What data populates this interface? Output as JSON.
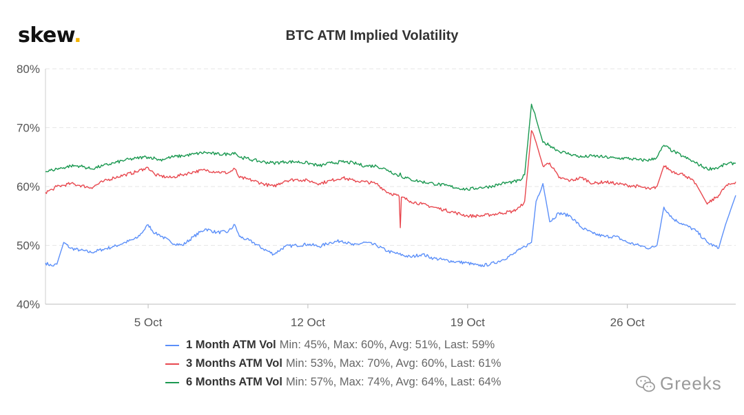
{
  "brand": {
    "name": "skew",
    "dot": "."
  },
  "watermark": {
    "text": "Greeks"
  },
  "chart_data": {
    "type": "line",
    "title": "BTC ATM Implied Volatility",
    "ylim": [
      40,
      80
    ],
    "yticks": [
      "40%",
      "50%",
      "60%",
      "70%",
      "80%"
    ],
    "ytick_values": [
      40,
      50,
      60,
      70,
      80
    ],
    "xlim": [
      0.5,
      30.75
    ],
    "xticks": [
      {
        "label": "5 Oct",
        "day": 5
      },
      {
        "label": "12 Oct",
        "day": 12
      },
      {
        "label": "19 Oct",
        "day": 19
      },
      {
        "label": "26 Oct",
        "day": 26
      }
    ],
    "grid": "horizontal-dashed",
    "legend_position": "bottom",
    "series": [
      {
        "name": "1 Month ATM Vol",
        "stats": "Min: 45%, Max: 60%, Avg: 51%, Last: 59%",
        "color": "#5b8ff9",
        "x": [
          0.5,
          0.8,
          1.0,
          1.3,
          1.6,
          2.0,
          2.5,
          3.0,
          3.5,
          4.0,
          4.5,
          4.8,
          5.0,
          5.3,
          5.5,
          6.0,
          6.5,
          7.0,
          7.5,
          8.0,
          8.5,
          8.8,
          9.0,
          9.3,
          9.6,
          10.0,
          10.5,
          11.0,
          11.5,
          12.0,
          12.5,
          13.0,
          13.5,
          14.0,
          14.5,
          15.0,
          15.5,
          16.0,
          16.5,
          17.0,
          17.5,
          18.0,
          18.5,
          19.0,
          19.5,
          20.0,
          20.5,
          21.0,
          21.3,
          21.5,
          21.8,
          22.0,
          22.3,
          22.6,
          23.0,
          23.5,
          24.0,
          24.5,
          25.0,
          25.5,
          26.0,
          26.5,
          27.0,
          27.3,
          27.6,
          28.0,
          28.5,
          29.0,
          29.5,
          30.0,
          30.3,
          30.75
        ],
        "values": [
          47,
          46.5,
          46.8,
          50.5,
          49.5,
          49.2,
          48.8,
          49.3,
          49.8,
          50.5,
          51.2,
          52.5,
          53.5,
          52,
          51.8,
          50.5,
          50,
          51.5,
          52.8,
          52.2,
          52.3,
          53.5,
          51.5,
          51,
          50.5,
          49.5,
          48.5,
          49.8,
          50,
          50.2,
          49.8,
          50.5,
          50.8,
          50,
          50.5,
          50,
          49,
          48.5,
          48,
          48.5,
          47.8,
          47.5,
          47.2,
          47,
          46.5,
          46.8,
          47.5,
          48.5,
          49.3,
          49.8,
          50.5,
          57.5,
          60.5,
          54,
          55.5,
          55,
          53,
          52,
          51.5,
          51.5,
          50.5,
          50,
          49.5,
          50,
          56.5,
          54.5,
          53.5,
          52.5,
          50.5,
          49.5,
          53.5,
          58.5
        ]
      },
      {
        "name": "3 Months ATM Vol",
        "stats": "Min: 53%, Max: 70%, Avg: 60%, Last: 61%",
        "color": "#e8474e",
        "x": [
          0.5,
          0.8,
          1.0,
          1.3,
          1.6,
          2.0,
          2.5,
          3.0,
          3.5,
          4.0,
          4.5,
          4.8,
          5.0,
          5.3,
          5.5,
          6.0,
          6.5,
          7.0,
          7.5,
          8.0,
          8.5,
          8.8,
          9.0,
          9.3,
          9.6,
          10.0,
          10.5,
          11.0,
          11.5,
          12.0,
          12.5,
          13.0,
          13.5,
          14.0,
          14.5,
          15.0,
          15.5,
          15.9,
          16.0,
          16.05,
          16.1,
          16.5,
          17.0,
          17.5,
          18.0,
          18.5,
          19.0,
          19.5,
          20.0,
          20.5,
          21.0,
          21.3,
          21.5,
          21.8,
          22.0,
          22.3,
          22.6,
          23.0,
          23.5,
          24.0,
          24.5,
          25.0,
          25.5,
          26.0,
          26.5,
          27.0,
          27.3,
          27.6,
          28.0,
          28.5,
          29.0,
          29.5,
          30.0,
          30.3,
          30.75
        ],
        "values": [
          59,
          59.5,
          60,
          60.2,
          60.5,
          60.2,
          59.8,
          60.8,
          61.5,
          62,
          62.5,
          63,
          63.2,
          62,
          61.8,
          61.5,
          62,
          62.5,
          62.8,
          62.5,
          62.3,
          63,
          61.5,
          61.3,
          61,
          60.5,
          60,
          61,
          61.2,
          61,
          60.5,
          61,
          61.5,
          61,
          60.8,
          60.5,
          59,
          58.5,
          58.3,
          53,
          58.2,
          57.5,
          57,
          56.5,
          56,
          55.5,
          55,
          55,
          55.2,
          55.5,
          55.8,
          56.5,
          57.5,
          69.5,
          67.5,
          63.5,
          64,
          61.5,
          61,
          61.5,
          60.5,
          60.8,
          60.5,
          60.2,
          60,
          59.5,
          60,
          63.5,
          62.5,
          62,
          60.5,
          57,
          58.5,
          60,
          60.8
        ]
      },
      {
        "name": "6 Months ATM Vol",
        "stats": "Min: 57%, Max: 74%, Avg: 64%, Last: 64%",
        "color": "#1a9850",
        "x": [
          0.5,
          0.8,
          1.0,
          1.3,
          1.6,
          2.0,
          2.5,
          3.0,
          3.5,
          4.0,
          4.5,
          4.8,
          5.0,
          5.3,
          5.5,
          6.0,
          6.5,
          7.0,
          7.5,
          8.0,
          8.5,
          8.8,
          9.0,
          9.3,
          9.6,
          10.0,
          10.5,
          11.0,
          11.5,
          12.0,
          12.5,
          13.0,
          13.5,
          14.0,
          14.5,
          15.0,
          15.5,
          15.9,
          16.0,
          16.05,
          16.1,
          16.5,
          17.0,
          17.5,
          18.0,
          18.5,
          19.0,
          19.5,
          20.0,
          20.5,
          21.0,
          21.3,
          21.5,
          21.8,
          22.0,
          22.3,
          22.6,
          23.0,
          23.5,
          24.0,
          24.5,
          25.0,
          25.5,
          26.0,
          26.5,
          27.0,
          27.3,
          27.6,
          28.0,
          28.5,
          29.0,
          29.5,
          30.0,
          30.3,
          30.75
        ],
        "values": [
          62.5,
          62.8,
          63,
          63.2,
          63.5,
          63.5,
          63,
          63.5,
          64,
          64.5,
          64.8,
          65,
          65,
          64.8,
          64.5,
          65,
          65.2,
          65.5,
          65.8,
          65.5,
          65.5,
          65.8,
          65,
          64.8,
          64.5,
          64.2,
          64,
          64.2,
          64.2,
          64,
          63.5,
          64,
          64.2,
          64,
          63.5,
          63.5,
          62.8,
          62,
          61.8,
          62.3,
          61.7,
          61.2,
          60.8,
          60.5,
          60.2,
          59.8,
          59.5,
          59.8,
          60,
          60.5,
          60.8,
          61,
          62,
          74,
          71.5,
          67.5,
          67,
          66,
          65.5,
          65,
          65.2,
          65,
          64.8,
          64.8,
          64.5,
          64.5,
          65,
          67,
          66,
          65,
          64,
          63,
          63.2,
          63.8,
          64
        ]
      }
    ]
  }
}
